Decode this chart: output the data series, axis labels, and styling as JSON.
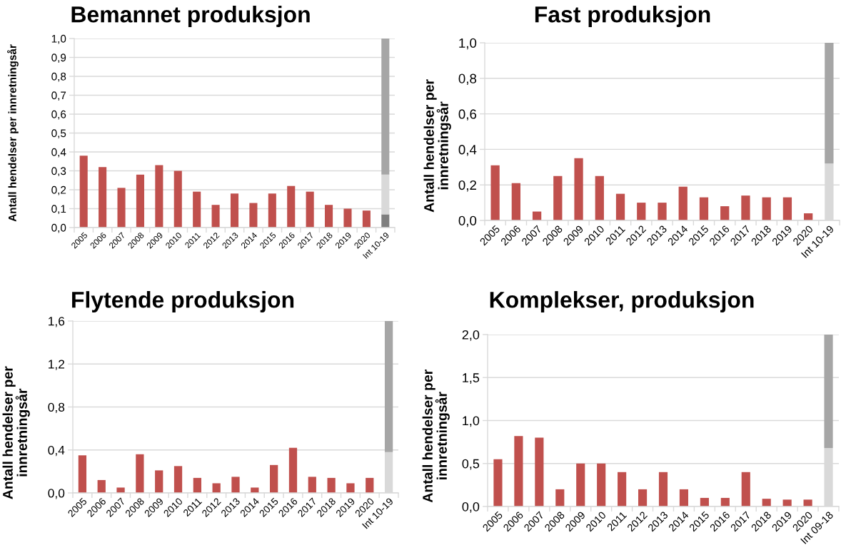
{
  "chart_data": [
    {
      "type": "bar",
      "title": "Bemannet produksjon",
      "ylabel": "Antall hendelser per innretningsår",
      "categories": [
        "2005",
        "2006",
        "2007",
        "2008",
        "2009",
        "2010",
        "2011",
        "2012",
        "2013",
        "2014",
        "2015",
        "2016",
        "2017",
        "2018",
        "2019",
        "2020",
        "Int 10-19"
      ],
      "stacked": true,
      "series": [
        {
          "color": "#c0504d",
          "values": [
            0.38,
            0.32,
            0.21,
            0.28,
            0.33,
            0.3,
            0.19,
            0.12,
            0.18,
            0.13,
            0.18,
            0.22,
            0.19,
            0.12,
            0.1,
            0.09,
            null
          ]
        },
        {
          "color": "#7f7f7f",
          "values": [
            null,
            null,
            null,
            null,
            null,
            null,
            null,
            null,
            null,
            null,
            null,
            null,
            null,
            null,
            null,
            null,
            0.07
          ]
        },
        {
          "color": "#d9d9d9",
          "values": [
            null,
            null,
            null,
            null,
            null,
            null,
            null,
            null,
            null,
            null,
            null,
            null,
            null,
            null,
            null,
            null,
            0.21
          ]
        },
        {
          "color": "#a6a6a6",
          "values": [
            null,
            null,
            null,
            null,
            null,
            null,
            null,
            null,
            null,
            null,
            null,
            null,
            null,
            null,
            null,
            null,
            0.72
          ]
        }
      ],
      "ylim": [
        0,
        1.0
      ],
      "yticks": [
        {
          "value": 0,
          "label": "0,0"
        },
        {
          "value": 0.1,
          "label": "0,1"
        },
        {
          "value": 0.2,
          "label": "0,2"
        },
        {
          "value": 0.3,
          "label": "0,3"
        },
        {
          "value": 0.4,
          "label": "0,4"
        },
        {
          "value": 0.5,
          "label": "0,5"
        },
        {
          "value": 0.6,
          "label": "0,6"
        },
        {
          "value": 0.7,
          "label": "0,7"
        },
        {
          "value": 0.8,
          "label": "0,8"
        },
        {
          "value": 0.9,
          "label": "0,9"
        },
        {
          "value": 1.0,
          "label": "1,0"
        }
      ],
      "grid": "y"
    },
    {
      "type": "bar",
      "title": "Fast produksjon",
      "ylabel": "Antall hendelser per\ninnretningsår",
      "categories": [
        "2005",
        "2006",
        "2007",
        "2008",
        "2009",
        "2010",
        "2011",
        "2012",
        "2013",
        "2014",
        "2015",
        "2016",
        "2017",
        "2018",
        "2019",
        "2020",
        "Int 10-19"
      ],
      "stacked": true,
      "series": [
        {
          "color": "#c0504d",
          "values": [
            0.31,
            0.21,
            0.05,
            0.25,
            0.35,
            0.25,
            0.15,
            0.1,
            0.1,
            0.19,
            0.13,
            0.08,
            0.14,
            0.13,
            0.13,
            0.04,
            null
          ]
        },
        {
          "color": "#d9d9d9",
          "values": [
            null,
            null,
            null,
            null,
            null,
            null,
            null,
            null,
            null,
            null,
            null,
            null,
            null,
            null,
            null,
            null,
            0.32
          ]
        },
        {
          "color": "#a6a6a6",
          "values": [
            null,
            null,
            null,
            null,
            null,
            null,
            null,
            null,
            null,
            null,
            null,
            null,
            null,
            null,
            null,
            null,
            0.68
          ]
        }
      ],
      "ylim": [
        0,
        1.0
      ],
      "yticks": [
        {
          "value": 0,
          "label": "0,0"
        },
        {
          "value": 0.2,
          "label": "0,2"
        },
        {
          "value": 0.4,
          "label": "0,4"
        },
        {
          "value": 0.6,
          "label": "0,6"
        },
        {
          "value": 0.8,
          "label": "0,8"
        },
        {
          "value": 1.0,
          "label": "1,0"
        }
      ],
      "grid": "y"
    },
    {
      "type": "bar",
      "title": "Flytende produksjon",
      "ylabel": "Antall hendelser per\ninnretningsår",
      "categories": [
        "2005",
        "2006",
        "2007",
        "2008",
        "2009",
        "2010",
        "2011",
        "2012",
        "2013",
        "2014",
        "2015",
        "2016",
        "2017",
        "2018",
        "2019",
        "2020",
        "Int 10-19"
      ],
      "stacked": true,
      "series": [
        {
          "color": "#c0504d",
          "values": [
            0.35,
            0.12,
            0.05,
            0.36,
            0.21,
            0.25,
            0.14,
            0.09,
            0.15,
            0.05,
            0.26,
            0.42,
            0.15,
            0.14,
            0.09,
            0.14,
            null
          ]
        },
        {
          "color": "#d9d9d9",
          "values": [
            null,
            null,
            null,
            null,
            null,
            null,
            null,
            null,
            null,
            null,
            null,
            null,
            null,
            null,
            null,
            null,
            0.38
          ]
        },
        {
          "color": "#a6a6a6",
          "values": [
            null,
            null,
            null,
            null,
            null,
            null,
            null,
            null,
            null,
            null,
            null,
            null,
            null,
            null,
            null,
            null,
            1.22
          ]
        }
      ],
      "ylim": [
        0,
        1.6
      ],
      "yticks": [
        {
          "value": 0,
          "label": "0,0"
        },
        {
          "value": 0.4,
          "label": "0,4"
        },
        {
          "value": 0.8,
          "label": "0,8"
        },
        {
          "value": 1.2,
          "label": "1,2"
        },
        {
          "value": 1.6,
          "label": "1,6"
        }
      ],
      "grid": "y"
    },
    {
      "type": "bar",
      "title": "Komplekser, produksjon",
      "ylabel": "Antall hendelser per\ninnretningsår",
      "categories": [
        "2005",
        "2006",
        "2007",
        "2008",
        "2009",
        "2010",
        "2011",
        "2012",
        "2013",
        "2014",
        "2015",
        "2016",
        "2017",
        "2018",
        "2019",
        "2020",
        "Int 09-18"
      ],
      "stacked": true,
      "series": [
        {
          "color": "#c0504d",
          "values": [
            0.55,
            0.82,
            0.8,
            0.2,
            0.5,
            0.5,
            0.4,
            0.2,
            0.4,
            0.2,
            0.1,
            0.1,
            0.4,
            0.09,
            0.08,
            0.08,
            null
          ]
        },
        {
          "color": "#d9d9d9",
          "values": [
            null,
            null,
            null,
            null,
            null,
            null,
            null,
            null,
            null,
            null,
            null,
            null,
            null,
            null,
            null,
            null,
            0.68
          ]
        },
        {
          "color": "#a6a6a6",
          "values": [
            null,
            null,
            null,
            null,
            null,
            null,
            null,
            null,
            null,
            null,
            null,
            null,
            null,
            null,
            null,
            null,
            1.32
          ]
        }
      ],
      "ylim": [
        0,
        2.0
      ],
      "yticks": [
        {
          "value": 0,
          "label": "0,0"
        },
        {
          "value": 0.5,
          "label": "0,5"
        },
        {
          "value": 1.0,
          "label": "1,0"
        },
        {
          "value": 1.5,
          "label": "1,5"
        },
        {
          "value": 2.0,
          "label": "2,0"
        }
      ],
      "grid": "y"
    }
  ]
}
